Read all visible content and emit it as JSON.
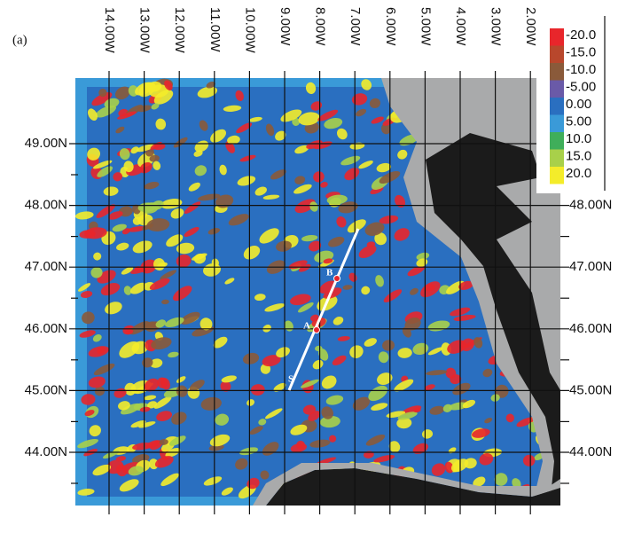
{
  "panel_label": "(a)",
  "longitudes": [
    "14.00W",
    "13.00W",
    "12.00W",
    "11.00W",
    "10.00W",
    "9.00W",
    "8.00W",
    "7.00W",
    "6.00W",
    "5.00W",
    "4.00W",
    "3.00W",
    "2.00W"
  ],
  "latitudes": [
    "49.00N",
    "48.00N",
    "47.00N",
    "46.00N",
    "45.00N",
    "44.00N"
  ],
  "legend": [
    {
      "label": "-20.0",
      "color": "#e8262b"
    },
    {
      "label": "-15.0",
      "color": "#b8472c"
    },
    {
      "label": "-10.0",
      "color": "#8a5a3a"
    },
    {
      "label": "-5.00",
      "color": "#6a5aa8"
    },
    {
      "label": "0.00",
      "color": "#2a6fc0"
    },
    {
      "label": "5.00",
      "color": "#3a9ad8"
    },
    {
      "label": "10.0",
      "color": "#3fae5a"
    },
    {
      "label": "15.0",
      "color": "#a8d04a"
    },
    {
      "label": "20.0",
      "color": "#f4ec2a"
    }
  ],
  "points": [
    {
      "label": "S"
    },
    {
      "label": "A"
    },
    {
      "label": "B"
    }
  ]
}
